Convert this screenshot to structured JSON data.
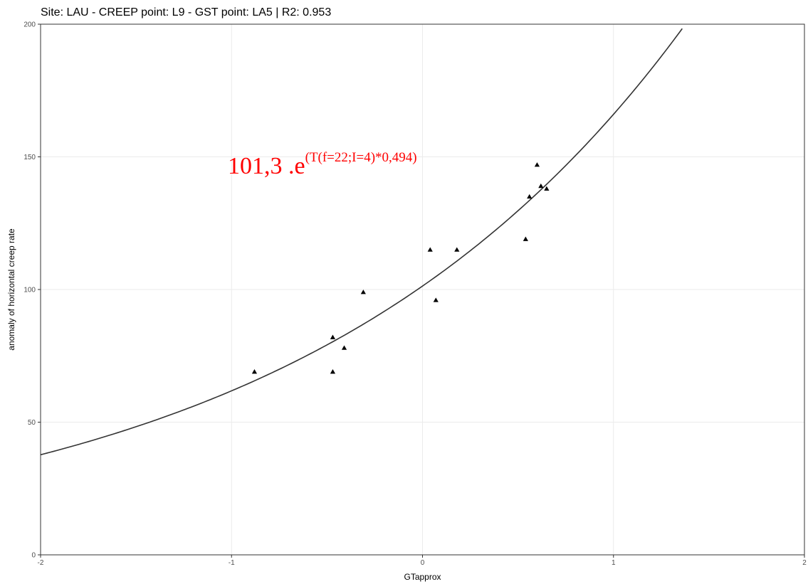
{
  "chart_data": {
    "type": "scatter",
    "title": "Site: LAU - CREEP point: L9 - GST point: LA5 | R2: 0.953",
    "xlabel": "GTapprox",
    "ylabel": "anomaly of horizontal creep rate",
    "xlim": [
      -2,
      2
    ],
    "ylim": [
      0,
      200
    ],
    "x_ticks": [
      -2,
      -1,
      0,
      1,
      2
    ],
    "y_ticks": [
      0,
      50,
      100,
      150,
      200
    ],
    "x_tick_labels": [
      "-2",
      "-1",
      "0",
      "1",
      "2"
    ],
    "y_tick_labels": [
      "0",
      "50",
      "100",
      "150",
      "200"
    ],
    "grid": true,
    "marker": "triangle",
    "points": [
      {
        "x": -0.88,
        "y": 69
      },
      {
        "x": -0.47,
        "y": 82
      },
      {
        "x": -0.47,
        "y": 69
      },
      {
        "x": -0.41,
        "y": 78
      },
      {
        "x": -0.31,
        "y": 99
      },
      {
        "x": 0.04,
        "y": 115
      },
      {
        "x": 0.07,
        "y": 96
      },
      {
        "x": 0.18,
        "y": 115
      },
      {
        "x": 0.54,
        "y": 119
      },
      {
        "x": 0.56,
        "y": 135
      },
      {
        "x": 0.6,
        "y": 147
      },
      {
        "x": 0.62,
        "y": 139
      },
      {
        "x": 0.65,
        "y": 138
      }
    ],
    "fit": {
      "type": "exponential",
      "a": 101.3,
      "b": 0.494,
      "x_range": [
        -2,
        1.36
      ]
    },
    "annotation": {
      "main": "101,3 .e",
      "superscript": "(T(f=22;I=4)*0,494)",
      "color": "#ff0000"
    },
    "colors": {
      "point": "#000000",
      "curve": "#333333",
      "grid": "#ebebeb",
      "annotation": "#ff0000"
    }
  }
}
